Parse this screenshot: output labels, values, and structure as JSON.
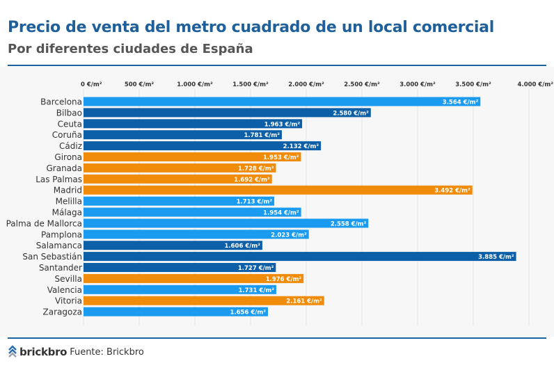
{
  "title": "Precio de venta del metro cuadrado de un local comercial",
  "subtitle": "Por diferentes ciudades de España",
  "footer": {
    "brand": "brickbro",
    "source": "Fuente: Brickbro"
  },
  "colors": {
    "light_blue": "#1a9bf0",
    "dark_blue": "#0d5fa8",
    "orange": "#f08c0a",
    "accent": "#1a62a0"
  },
  "chart_data": {
    "type": "bar",
    "orientation": "horizontal",
    "xlim": [
      0,
      4000
    ],
    "ticks": [
      0,
      500,
      1000,
      1500,
      2000,
      2500,
      3000,
      3500,
      4000
    ],
    "tick_labels": [
      "0 €/m²",
      "500 €/m²",
      "1.000 €/m²",
      "1.500 €/m²",
      "2.000 €/m²",
      "2.500 €/m²",
      "3.000 €/m²",
      "3.500 €/m²",
      "4.000 €/m²"
    ],
    "grid": true,
    "categories": [
      "Barcelona",
      "Bilbao",
      "Ceuta",
      "Coruña",
      "Cádiz",
      "Girona",
      "Granada",
      "Las Palmas",
      "Madrid",
      "Melilla",
      "Málaga",
      "Palma de Mallorca",
      "Pamplona",
      "Salamanca",
      "San Sebastián",
      "Santander",
      "Sevilla",
      "Valencia",
      "Vitoria",
      "Zaragoza"
    ],
    "values": [
      3564,
      2580,
      1963,
      1781,
      2132,
      1953,
      1728,
      1692,
      3492,
      1713,
      1954,
      2558,
      2023,
      1606,
      3885,
      1727,
      1976,
      1731,
      2161,
      1656
    ],
    "value_labels": [
      "3.564 €/m²",
      "2.580 €/m²",
      "1.963 €/m²",
      "1.781 €/m²",
      "2.132 €/m²",
      "1.953 €/m²",
      "1.728 €/m²",
      "1.692 €/m²",
      "3.492 €/m²",
      "1.713 €/m²",
      "1.954 €/m²",
      "2.558 €/m²",
      "2.023 €/m²",
      "1.606 €/m²",
      "3.885 €/m²",
      "1.727 €/m²",
      "1.976 €/m²",
      "1.731 €/m²",
      "2.161 €/m²",
      "1.656 €/m²"
    ],
    "bar_colors": [
      "#1a9bf0",
      "#0d5fa8",
      "#0d5fa8",
      "#0d5fa8",
      "#0d5fa8",
      "#f08c0a",
      "#f08c0a",
      "#f08c0a",
      "#f08c0a",
      "#1a9bf0",
      "#1a9bf0",
      "#1a9bf0",
      "#1a9bf0",
      "#0d5fa8",
      "#0d5fa8",
      "#0d5fa8",
      "#f08c0a",
      "#1a9bf0",
      "#f08c0a",
      "#1a9bf0"
    ]
  }
}
